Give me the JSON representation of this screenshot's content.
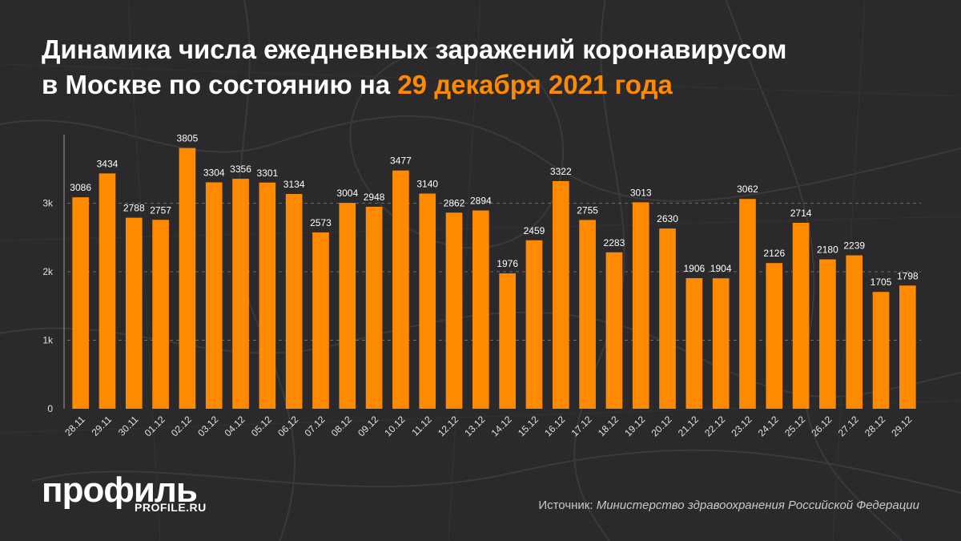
{
  "title": {
    "line1": "Динамика числа ежедневных заражений коронавирусом",
    "line2_prefix": "в Москве по состоянию на ",
    "line2_highlight": "29 декабря 2021 года"
  },
  "branding": {
    "logo": "профиль",
    "site": "PROFILE.RU"
  },
  "source": {
    "prefix": "Источник: ",
    "name": "Министерство здравоохранения Российской Федерации"
  },
  "colors": {
    "background": "#2a2a2c",
    "bar": "#ff8a00",
    "accent": "#ff8a00",
    "text": "#ffffff"
  },
  "chart_data": {
    "type": "bar",
    "categories": [
      "28.11",
      "29.11",
      "30.11",
      "01.12",
      "02.12",
      "03.12",
      "04.12",
      "05.12",
      "06.12",
      "07.12",
      "08.12",
      "09.12",
      "10.12",
      "11.12",
      "12.12",
      "13.12",
      "14.12",
      "15.12",
      "16.12",
      "17.12",
      "18.12",
      "19.12",
      "20.12",
      "21.12",
      "22.12",
      "23.12",
      "24.12",
      "25.12",
      "26.12",
      "27.12",
      "28.12",
      "29.12"
    ],
    "values": [
      3086,
      3434,
      2788,
      2757,
      3805,
      3304,
      3356,
      3301,
      3134,
      2573,
      3004,
      2948,
      3477,
      3140,
      2862,
      2894,
      1976,
      2459,
      3322,
      2755,
      2283,
      3013,
      2630,
      1906,
      1904,
      3062,
      2126,
      2714,
      2180,
      2239,
      1705,
      1798
    ],
    "ylim": [
      0,
      4000
    ],
    "yticks": [
      0,
      1000,
      2000,
      3000
    ],
    "ytick_labels": [
      "0",
      "1k",
      "2k",
      "3k"
    ],
    "grid": true,
    "data_labels": true
  }
}
